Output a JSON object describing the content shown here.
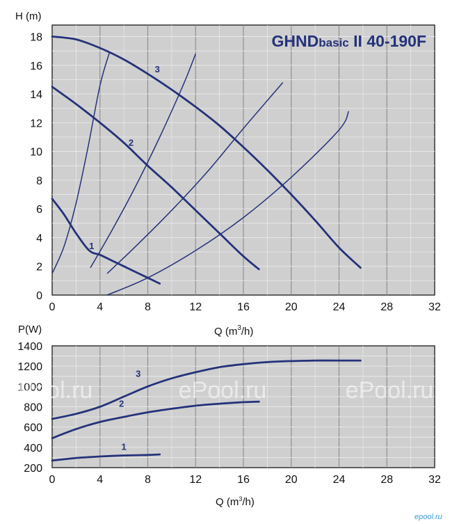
{
  "chart_data": [
    {
      "type": "line",
      "title_main": "GHND",
      "title_small": "basic",
      "title_rest": " II 40-190F",
      "ylabel": "H (m)",
      "xlabel_pre": "Q (m",
      "xlabel_sup": "3",
      "xlabel_post": "/h)",
      "xlim": [
        0,
        32
      ],
      "ylim": [
        0,
        18.8
      ],
      "xticks": [
        "0",
        "4",
        "8",
        "12",
        "16",
        "20",
        "24",
        "28",
        "32"
      ],
      "yticks": [
        "0",
        "2",
        "4",
        "6",
        "8",
        "10",
        "12",
        "14",
        "16",
        "18"
      ],
      "grid": true,
      "series": [
        {
          "name": "1",
          "x": [
            0,
            1,
            2,
            3.1,
            4,
            5,
            6,
            7,
            8,
            9
          ],
          "y": [
            6.7,
            5.6,
            4.3,
            3.1,
            2.8,
            2.4,
            2.0,
            1.6,
            1.2,
            0.8
          ]
        },
        {
          "name": "2",
          "x": [
            0,
            2,
            4,
            6,
            8,
            10,
            12,
            14,
            16,
            17.3
          ],
          "y": [
            14.5,
            13.3,
            12.0,
            10.6,
            9.0,
            7.5,
            5.9,
            4.3,
            2.7,
            1.8
          ]
        },
        {
          "name": "3",
          "x": [
            0,
            2,
            4,
            6,
            8,
            10,
            12,
            14,
            16,
            18,
            20,
            22,
            24,
            25.8
          ],
          "y": [
            18.0,
            17.8,
            17.2,
            16.4,
            15.4,
            14.3,
            13.1,
            11.8,
            10.3,
            8.7,
            7.0,
            5.2,
            3.3,
            1.9
          ]
        }
      ],
      "system_curves": [
        {
          "x": [
            0,
            1,
            2,
            3,
            4,
            4.8
          ],
          "y": [
            1.5,
            3.4,
            6.4,
            10.3,
            14.6,
            16.9
          ]
        },
        {
          "x": [
            3.2,
            5,
            7,
            9,
            11,
            12
          ],
          "y": [
            1.9,
            4.5,
            7.6,
            11.0,
            14.7,
            16.8
          ]
        },
        {
          "x": [
            4.6,
            7,
            10,
            13,
            16,
            19.3
          ],
          "y": [
            1.5,
            3.4,
            5.9,
            8.6,
            11.6,
            14.8
          ]
        },
        {
          "x": [
            4.6,
            8,
            12,
            16,
            20,
            24,
            24.8
          ],
          "y": [
            0,
            1.2,
            3.1,
            5.4,
            8.2,
            11.5,
            12.8
          ]
        }
      ],
      "label_positions": [
        {
          "text": "1",
          "x": 3.3,
          "y": 3.2
        },
        {
          "text": "2",
          "x": 6.6,
          "y": 10.4
        },
        {
          "text": "3",
          "x": 8.8,
          "y": 15.5
        }
      ]
    },
    {
      "type": "line",
      "ylabel": "P(W)",
      "xlabel_pre": "Q (m",
      "xlabel_sup": "3",
      "xlabel_post": "/h)",
      "xlim": [
        0,
        32
      ],
      "ylim": [
        200,
        1400
      ],
      "xticks": [
        "0",
        "4",
        "8",
        "12",
        "16",
        "20",
        "24",
        "28",
        "32"
      ],
      "yticks": [
        "200",
        "400",
        "600",
        "800",
        "1000",
        "1200",
        "1400"
      ],
      "grid": true,
      "series": [
        {
          "name": "1",
          "x": [
            0,
            2,
            4,
            6,
            8,
            9
          ],
          "y": [
            270,
            295,
            310,
            320,
            325,
            330
          ]
        },
        {
          "name": "2",
          "x": [
            0,
            2,
            4,
            6,
            8,
            10,
            12,
            14,
            16,
            17.3
          ],
          "y": [
            490,
            580,
            650,
            700,
            745,
            780,
            810,
            830,
            845,
            850
          ]
        },
        {
          "name": "3",
          "x": [
            0,
            2,
            4,
            6,
            8,
            10,
            12,
            14,
            16,
            18,
            20,
            22,
            24,
            25.8
          ],
          "y": [
            680,
            730,
            800,
            900,
            1000,
            1080,
            1140,
            1190,
            1220,
            1240,
            1250,
            1255,
            1255,
            1255
          ]
        }
      ],
      "label_positions": [
        {
          "text": "1",
          "x": 6.0,
          "y": 375
        },
        {
          "text": "2",
          "x": 5.8,
          "y": 800
        },
        {
          "text": "3",
          "x": 7.2,
          "y": 1095
        }
      ]
    }
  ],
  "watermarks": [
    "ePool.ru",
    "ePool.ru",
    "ePool.ru"
  ],
  "brand": "epool.ru",
  "colors": {
    "curve": "#24327a",
    "plot_bg": "#cfcfcf",
    "grid": "#e9e9e9"
  }
}
